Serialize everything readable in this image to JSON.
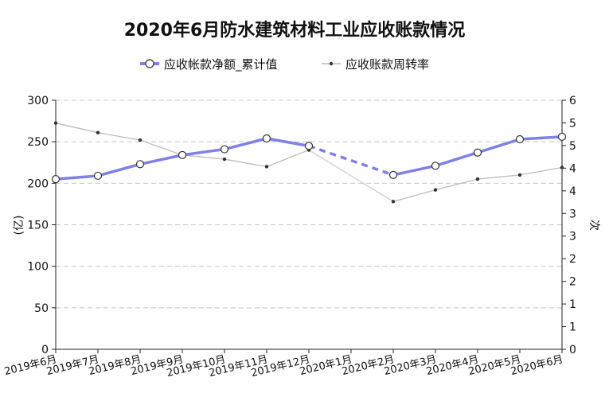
{
  "chart_data": {
    "type": "line",
    "title": "2020年6月防水建筑材料工业应收账款情况",
    "categories": [
      "2019年6月",
      "2019年7月",
      "2019年8月",
      "2019年9月",
      "2019年10月",
      "2019年11月",
      "2019年12月",
      "2020年1月",
      "2020年2月",
      "2020年3月",
      "2020年4月",
      "2020年5月",
      "2020年6月"
    ],
    "y_left": {
      "label": "(亿)",
      "ticks": [
        "300",
        "250",
        "200",
        "150",
        "100",
        "50",
        "0"
      ],
      "ylim": [
        0,
        300
      ]
    },
    "y_right": {
      "label": "次",
      "ticks": [
        "6",
        "5",
        "5",
        "4",
        "4",
        "3",
        "3",
        "2",
        "2",
        "1",
        "1",
        "0"
      ],
      "ylim": [
        0,
        6
      ]
    },
    "grid": true,
    "legend_position": "top",
    "series": [
      {
        "name": "应收帐款净额_累计值",
        "axis": "left",
        "color": "#8080e8",
        "values": [
          205,
          209,
          223,
          234,
          241,
          254,
          245,
          null,
          210,
          221,
          237,
          253,
          256
        ]
      },
      {
        "name": "应收账款周转率",
        "axis": "right",
        "color": "#555555",
        "values": [
          5.45,
          5.22,
          5.04,
          4.68,
          4.58,
          4.4,
          4.8,
          null,
          3.56,
          3.84,
          4.1,
          4.2,
          4.38
        ]
      }
    ]
  }
}
